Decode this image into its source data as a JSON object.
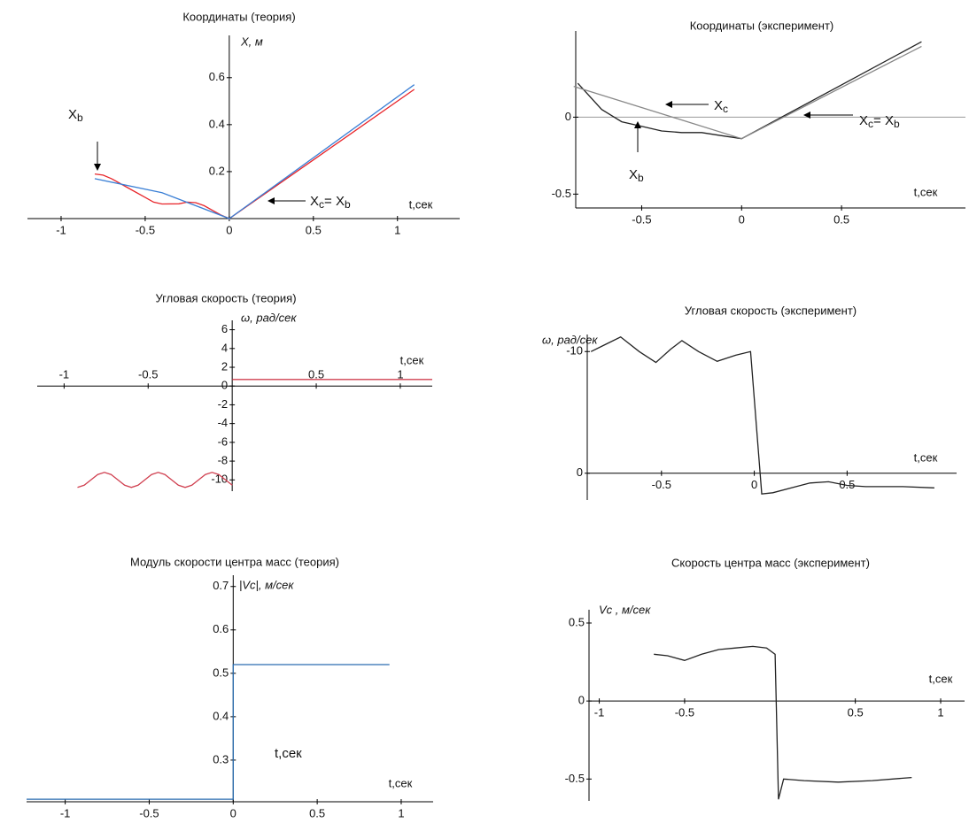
{
  "chart_data": [
    {
      "type": "line",
      "title": "Координаты (теория)",
      "ylabel": "X,  м",
      "xlabel": "t,сек",
      "xlim": [
        -1.2,
        1.37
      ],
      "ylim": [
        0,
        0.78
      ],
      "xticks": [
        -1,
        -0.5,
        0,
        0.5,
        1
      ],
      "yticks": [
        0.2,
        0.4,
        0.6
      ],
      "x_axis": "zero",
      "y_axis": "zero",
      "series": [
        {
          "color": "#e8262b",
          "x": [
            -0.8,
            -0.75,
            -0.7,
            -0.6,
            -0.5,
            -0.45,
            -0.4,
            -0.3,
            -0.25,
            -0.2,
            -0.15,
            -0.1,
            -0.05,
            0,
            0.5,
            1.1
          ],
          "values": [
            0.19,
            0.185,
            0.17,
            0.13,
            0.09,
            0.07,
            0.062,
            0.063,
            0.07,
            0.068,
            0.055,
            0.035,
            0.015,
            0,
            0.25,
            0.55
          ]
        },
        {
          "color": "#3a7fd5",
          "x": [
            -0.8,
            -0.4,
            0,
            1.1
          ],
          "values": [
            0.17,
            0.11,
            0,
            0.57
          ]
        }
      ],
      "annotations": [
        {
          "parts": [
            "X",
            "b"
          ]
        },
        {
          "parts": [
            "X",
            "c",
            "= X",
            "b"
          ]
        }
      ]
    },
    {
      "type": "line",
      "title": "Координаты (эксперимент)",
      "xlabel": "t,сек",
      "xlim": [
        -0.83,
        1.12
      ],
      "ylim": [
        -0.59,
        0.56
      ],
      "xticks": [
        -0.5,
        0,
        0.5
      ],
      "yticks": [
        -0.5,
        0
      ],
      "x_axis": "bottom",
      "y_axis": "left",
      "zero_line": true,
      "series": [
        {
          "color": "#222222",
          "x": [
            -0.82,
            -0.7,
            -0.6,
            -0.5,
            -0.4,
            -0.3,
            -0.2,
            -0.1,
            0,
            0.5,
            0.9
          ],
          "values": [
            0.22,
            0.05,
            -0.03,
            -0.06,
            -0.09,
            -0.1,
            -0.1,
            -0.12,
            -0.14,
            0.21,
            0.49
          ]
        },
        {
          "color": "#888888",
          "x": [
            -0.84,
            0,
            0.9
          ],
          "values": [
            0.2,
            -0.14,
            0.46
          ]
        }
      ],
      "annotations": [
        {
          "parts": [
            "X",
            "c"
          ]
        },
        {
          "parts": [
            "X",
            "c",
            "= X",
            "b"
          ]
        },
        {
          "parts": [
            "X",
            "b"
          ]
        }
      ]
    },
    {
      "type": "line",
      "title": "Угловая скорость  (теория)",
      "ylabel": "ω,  рад/сек",
      "xlabel": "t,сек",
      "xlim": [
        -1.16,
        1.19
      ],
      "ylim": [
        -11.2,
        7
      ],
      "xticks": [
        -1,
        -0.5,
        0.5,
        1
      ],
      "yticks": [
        6,
        4,
        2,
        0,
        -2,
        -4,
        -6,
        -8,
        -10
      ],
      "x_axis": "zero",
      "y_axis": "zero",
      "xtick_labels": "above",
      "series": [
        {
          "color": "#d04050",
          "x": [
            -0.92,
            -0.88,
            -0.84,
            -0.8,
            -0.76,
            -0.72,
            -0.68,
            -0.64,
            -0.6,
            -0.56,
            -0.52,
            -0.48,
            -0.44,
            -0.4,
            -0.36,
            -0.32,
            -0.28,
            -0.24,
            -0.2,
            -0.16,
            -0.12,
            -0.08,
            -0.04,
            0,
            0,
            0,
            1.19
          ],
          "values": [
            -10.8,
            -10.57,
            -10,
            -9.43,
            -9.2,
            -9.43,
            -10,
            -10.57,
            -10.8,
            -10.57,
            -10,
            -9.43,
            -9.2,
            -9.43,
            -10,
            -10.57,
            -10.8,
            -10.57,
            -10,
            -9.43,
            -9.2,
            -9.43,
            -10,
            -10.57,
            null,
            0.7,
            0.7
          ]
        }
      ]
    },
    {
      "type": "line",
      "title": "Угловая скорость  (эксперимент)",
      "ylabel": "ω,  рад/сек",
      "xlabel": "t,сек",
      "xlim": [
        -0.9,
        1.09
      ],
      "ylim": [
        2.2,
        -11.4
      ],
      "xticks": [
        -0.5,
        0,
        0.5
      ],
      "yticks": [
        -10,
        0
      ],
      "x_axis": "zero",
      "y_axis": "left",
      "series": [
        {
          "color": "#222222",
          "x": [
            -0.88,
            -0.8,
            -0.72,
            -0.62,
            -0.53,
            -0.45,
            -0.39,
            -0.3,
            -0.2,
            -0.1,
            -0.02,
            0.04,
            0.1,
            0.2,
            0.3,
            0.4,
            0.5,
            0.6,
            0.7,
            0.8,
            0.97
          ],
          "values": [
            -10,
            -10.6,
            -11.2,
            -10,
            -9.1,
            -10.2,
            -10.9,
            -10,
            -9.2,
            -9.7,
            -10,
            1.7,
            1.6,
            1.2,
            0.8,
            0.7,
            1.0,
            1.1,
            1.1,
            1.1,
            1.2
          ]
        }
      ]
    },
    {
      "type": "line",
      "title": "Модуль скорости центра масс (теория)",
      "ylabel": "|Vc|,  м/сек",
      "xlabel": "t,сек",
      "xlim": [
        -1.23,
        1.19
      ],
      "ylim": [
        0.204,
        0.726
      ],
      "xticks": [
        -1,
        -0.5,
        0,
        0.5,
        1
      ],
      "yticks": [
        0.3,
        0.4,
        0.5,
        0.6,
        0.7
      ],
      "x_axis": "bottom",
      "y_axis": "zero",
      "series": [
        {
          "color": "#2a6cb0",
          "x": [
            -1.23,
            0,
            0,
            0.93
          ],
          "values": [
            0.21,
            0.21,
            0.52,
            0.52
          ]
        }
      ],
      "annotations": [
        {
          "parts": [
            "t,сек"
          ]
        }
      ]
    },
    {
      "type": "line",
      "title": "Скорость центра масс   (эксперимент)",
      "ylabel": "Vc ,  м/сек",
      "xlabel": "t,сек",
      "xlim": [
        -1.06,
        1.14
      ],
      "ylim": [
        -0.64,
        0.585
      ],
      "xticks": [
        -1,
        -0.5,
        0.5,
        1
      ],
      "yticks": [
        0.5,
        0,
        -0.5
      ],
      "x_axis": "zero",
      "y_axis": "left",
      "series": [
        {
          "color": "#222222",
          "x": [
            -0.68,
            -0.6,
            -0.5,
            -0.4,
            -0.3,
            -0.2,
            -0.1,
            -0.02,
            0.03,
            0.05,
            0.08,
            0.2,
            0.4,
            0.6,
            0.83
          ],
          "values": [
            0.3,
            0.29,
            0.26,
            0.3,
            0.33,
            0.34,
            0.35,
            0.34,
            0.3,
            -0.63,
            -0.5,
            -0.51,
            -0.52,
            -0.51,
            -0.49
          ]
        }
      ]
    }
  ]
}
